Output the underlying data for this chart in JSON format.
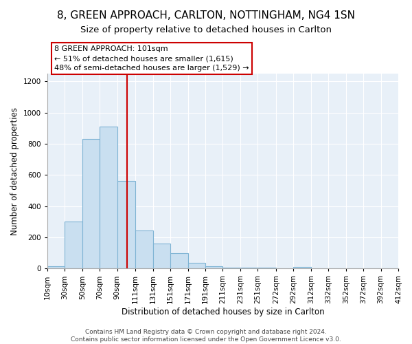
{
  "title": "8, GREEN APPROACH, CARLTON, NOTTINGHAM, NG4 1SN",
  "subtitle": "Size of property relative to detached houses in Carlton",
  "xlabel": "Distribution of detached houses by size in Carlton",
  "ylabel": "Number of detached properties",
  "bin_edges": [
    10,
    30,
    50,
    70,
    90,
    111,
    131,
    151,
    171,
    191,
    211,
    231,
    251,
    272,
    292,
    312,
    332,
    352,
    372,
    392,
    412
  ],
  "bar_heights": [
    15,
    300,
    830,
    910,
    560,
    245,
    160,
    100,
    35,
    15,
    5,
    5,
    5,
    0,
    10,
    0,
    0,
    0,
    0,
    0
  ],
  "bar_color": "#c9dff0",
  "bar_edgecolor": "#7fb4d4",
  "plot_bg_color": "#e8f0f8",
  "vline_x": 101,
  "vline_color": "#cc0000",
  "ylim": [
    0,
    1250
  ],
  "yticks": [
    0,
    200,
    400,
    600,
    800,
    1000,
    1200
  ],
  "xtick_labels": [
    "10sqm",
    "30sqm",
    "50sqm",
    "70sqm",
    "90sqm",
    "111sqm",
    "131sqm",
    "151sqm",
    "171sqm",
    "191sqm",
    "211sqm",
    "231sqm",
    "251sqm",
    "272sqm",
    "292sqm",
    "312sqm",
    "332sqm",
    "352sqm",
    "372sqm",
    "392sqm",
    "412sqm"
  ],
  "annotation_title": "8 GREEN APPROACH: 101sqm",
  "annotation_line1": "← 51% of detached houses are smaller (1,615)",
  "annotation_line2": "48% of semi-detached houses are larger (1,529) →",
  "footer1": "Contains HM Land Registry data © Crown copyright and database right 2024.",
  "footer2": "Contains public sector information licensed under the Open Government Licence v3.0.",
  "title_fontsize": 11,
  "subtitle_fontsize": 9.5,
  "axis_label_fontsize": 8.5,
  "tick_fontsize": 7.5,
  "annotation_fontsize": 8,
  "footer_fontsize": 6.5
}
